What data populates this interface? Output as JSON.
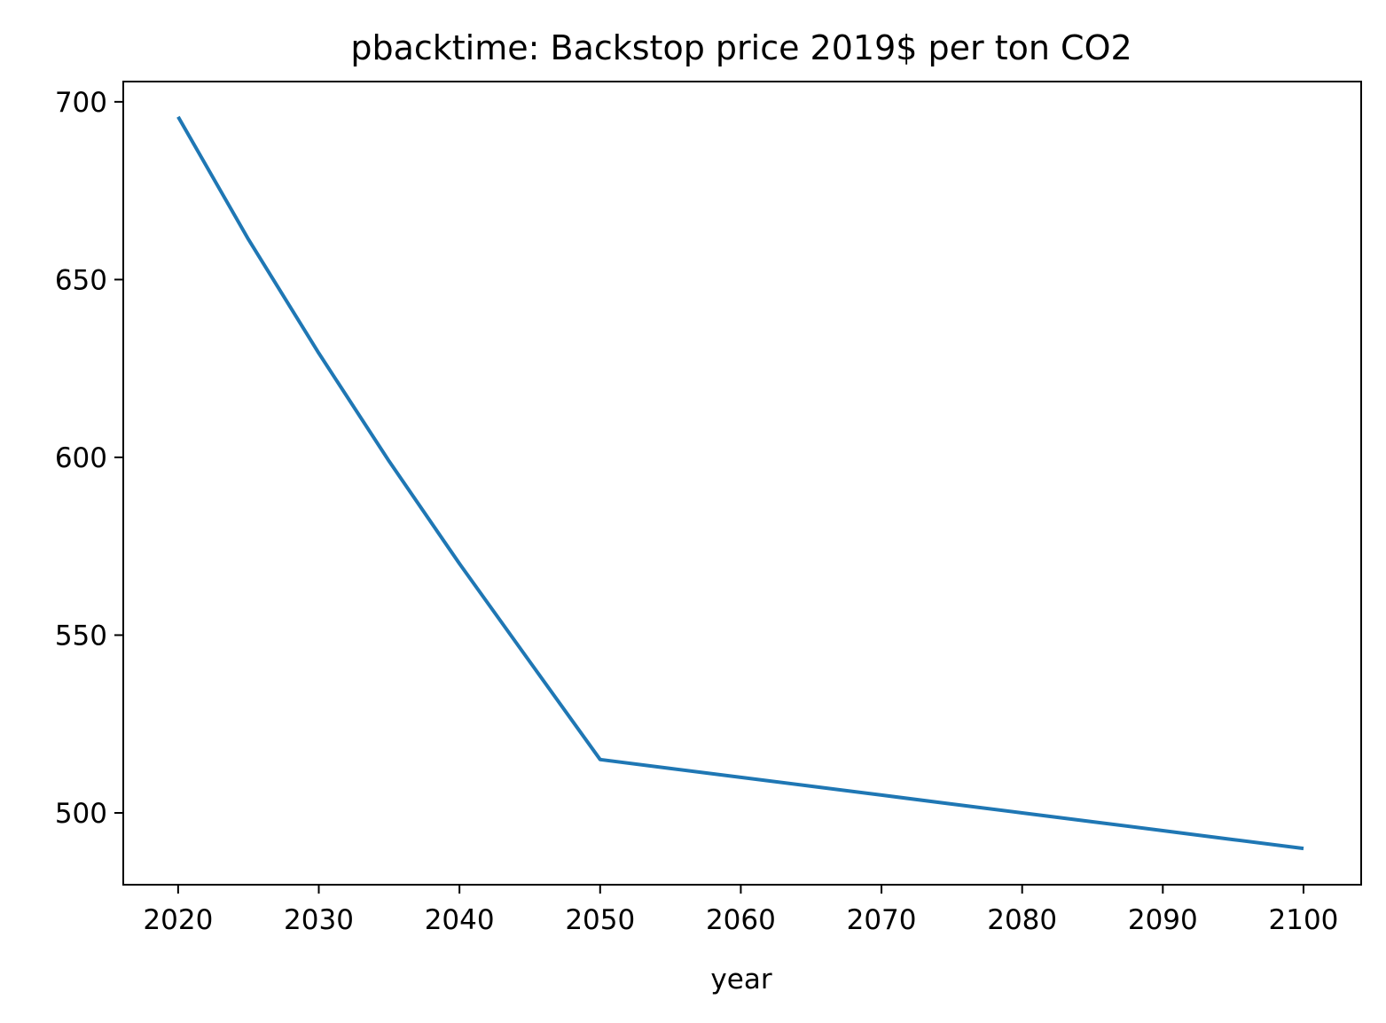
{
  "chart_data": {
    "type": "line",
    "title": "pbacktime: Backstop price 2019$ per ton CO2",
    "xlabel": "year",
    "ylabel": "",
    "xlim": [
      2016.1,
      2104.1
    ],
    "ylim": [
      479.8,
      705.7
    ],
    "x_ticks": [
      2020,
      2030,
      2040,
      2050,
      2060,
      2070,
      2080,
      2090,
      2100
    ],
    "y_ticks": [
      500,
      550,
      600,
      650,
      700
    ],
    "grid": false,
    "legend": "none",
    "series": [
      {
        "color": "#1f77b4",
        "x": [
          2020,
          2025,
          2030,
          2035,
          2040,
          2045,
          2050,
          2055,
          2060,
          2065,
          2070,
          2075,
          2080,
          2085,
          2090,
          2095,
          2100
        ],
        "y": [
          695.8,
          661.3,
          629.3,
          598.9,
          570.1,
          542.5,
          515.0,
          512.5,
          510.0,
          507.5,
          505.0,
          502.5,
          500.0,
          497.5,
          495.0,
          492.5,
          490.0
        ]
      }
    ]
  }
}
